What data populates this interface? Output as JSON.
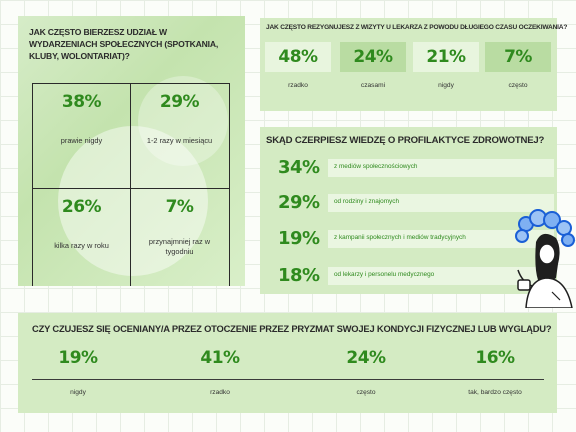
{
  "activities": {
    "title": "JAK CZĘSTO BIERZESZ UDZIAŁ W WYDARZENIACH SPOŁECZNYCH (SPOTKANIA, KLUBY, WOLONTARIAT)?",
    "cells": [
      {
        "pct": "38%",
        "label": "prawie nigdy"
      },
      {
        "pct": "29%",
        "label": "1-2 razy w miesiącu"
      },
      {
        "pct": "26%",
        "label": "kilka razy w roku"
      },
      {
        "pct": "7%",
        "label": "przynajmniej raz w tygodniu"
      }
    ]
  },
  "doctor": {
    "title": "JAK CZĘSTO REZYGNUJESZ Z WIZYTY U LEKARZA Z POWODU DŁUGIEGO CZASU OCZEKIWANIA?",
    "columns": [
      {
        "pct": "48%",
        "label": "rzadko"
      },
      {
        "pct": "24%",
        "label": "czasami"
      },
      {
        "pct": "21%",
        "label": "nigdy"
      },
      {
        "pct": "7%",
        "label": "często"
      }
    ]
  },
  "knowledge": {
    "title": "SKĄD CZERPIESZ WIEDZĘ O PROFILAKTYCE ZDROWOTNEJ?",
    "rows": [
      {
        "pct": "34%",
        "label": "z mediów społecznościowych"
      },
      {
        "pct": "29%",
        "label": "od rodziny i znajomych"
      },
      {
        "pct": "19%",
        "label": "z kampanii społecznych i mediów tradycyjnych"
      },
      {
        "pct": "18%",
        "label": "od lekarzy i personelu medycznego"
      }
    ]
  },
  "judged": {
    "title": "CZY CZUJESZ SIĘ OCENIANY/A PRZEZ OTOCZENIE PRZEZ PRYZMAT SWOJEJ KONDYCJI FIZYCZNEJ LUB WYGLĄDU?",
    "columns": [
      {
        "pct": "19%",
        "label": "nigdy"
      },
      {
        "pct": "41%",
        "label": "rzadko"
      },
      {
        "pct": "24%",
        "label": "często"
      },
      {
        "pct": "16%",
        "label": "tak, bardzo często"
      }
    ]
  },
  "colors": {
    "accent_green": "#2f8a1e",
    "panel_bg": "#d4ebc3",
    "box_dark": "#b9dca2",
    "box_light": "#e8f5de"
  },
  "illustration": {
    "icon": "woman-with-curly-blue-hair-illustration"
  }
}
